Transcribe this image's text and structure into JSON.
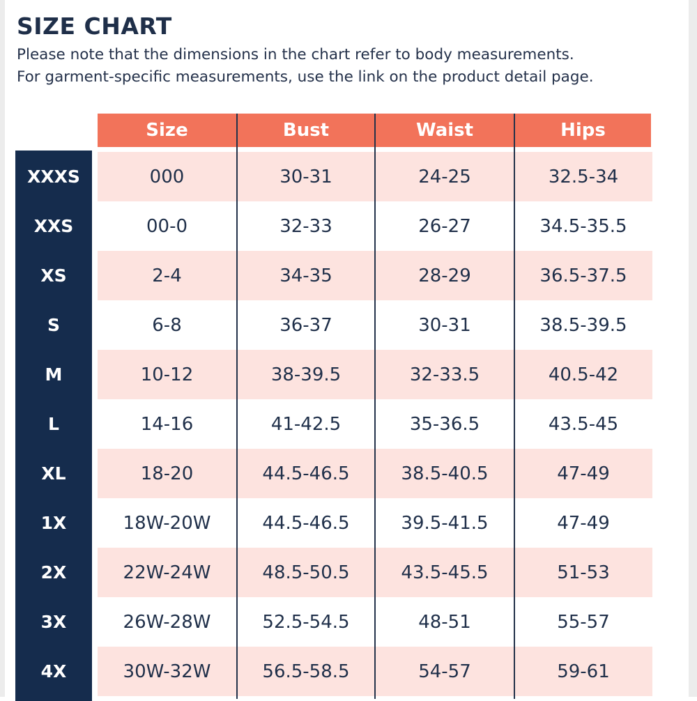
{
  "title": "SIZE CHART",
  "subtitle": {
    "line1": "Please note that the dimensions in the chart refer to body measurements.",
    "line2": "For garment-specific measurements, use the link on the product detail page."
  },
  "colors": {
    "header": "#f2735a",
    "navy": "#152c4d",
    "pink_row": "#fde3df",
    "text": "#1f2f49"
  },
  "table": {
    "headers": [
      "Size",
      "Bust",
      "Waist",
      "Hips"
    ],
    "rows": [
      {
        "label": "XXXS",
        "size": "000",
        "bust": "30-31",
        "waist": "24-25",
        "hips": "32.5-34"
      },
      {
        "label": "XXS",
        "size": "00-0",
        "bust": "32-33",
        "waist": "26-27",
        "hips": "34.5-35.5"
      },
      {
        "label": "XS",
        "size": "2-4",
        "bust": "34-35",
        "waist": "28-29",
        "hips": "36.5-37.5"
      },
      {
        "label": "S",
        "size": "6-8",
        "bust": "36-37",
        "waist": "30-31",
        "hips": "38.5-39.5"
      },
      {
        "label": "M",
        "size": "10-12",
        "bust": "38-39.5",
        "waist": "32-33.5",
        "hips": "40.5-42"
      },
      {
        "label": "L",
        "size": "14-16",
        "bust": "41-42.5",
        "waist": "35-36.5",
        "hips": "43.5-45"
      },
      {
        "label": "XL",
        "size": "18-20",
        "bust": "44.5-46.5",
        "waist": "38.5-40.5",
        "hips": "47-49"
      },
      {
        "label": "1X",
        "size": "18W-20W",
        "bust": "44.5-46.5",
        "waist": "39.5-41.5",
        "hips": "47-49"
      },
      {
        "label": "2X",
        "size": "22W-24W",
        "bust": "48.5-50.5",
        "waist": "43.5-45.5",
        "hips": "51-53"
      },
      {
        "label": "3X",
        "size": "26W-28W",
        "bust": "52.5-54.5",
        "waist": "48-51",
        "hips": "55-57"
      },
      {
        "label": "4X",
        "size": "30W-32W",
        "bust": "56.5-58.5",
        "waist": "54-57",
        "hips": "59-61"
      }
    ]
  }
}
